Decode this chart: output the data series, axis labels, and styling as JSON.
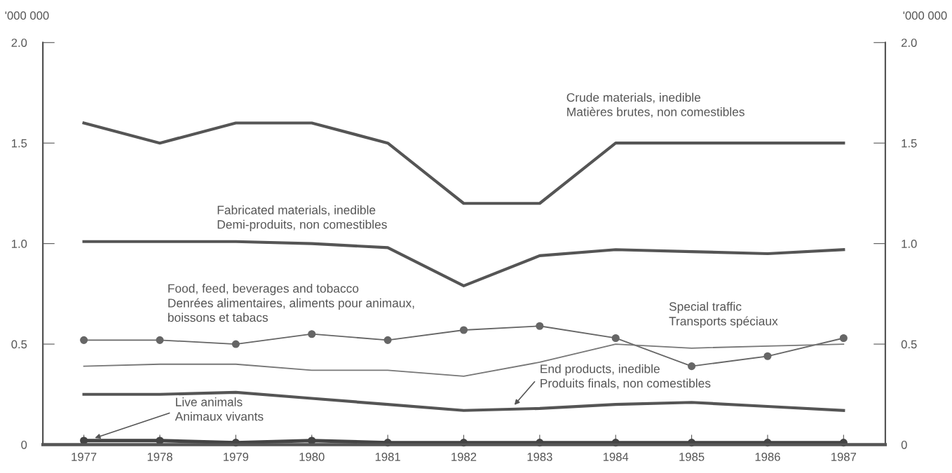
{
  "chart_data": {
    "type": "line",
    "ylabel": "'000 000",
    "y2label": "'000 000",
    "x": [
      1977,
      1978,
      1979,
      1980,
      1981,
      1982,
      1983,
      1984,
      1985,
      1986,
      1987
    ],
    "xlim": [
      1976.46,
      1987.55
    ],
    "xticks": [
      1977,
      1978,
      1979,
      1980,
      1981,
      1982,
      1983,
      1984,
      1985,
      1986,
      1987
    ],
    "ylim": [
      0,
      2.0
    ],
    "yticks": [
      0,
      {
        "value": 0.5,
        "label": "0.5"
      },
      {
        "value": 1.0,
        "label": "1.0"
      },
      {
        "value": 1.5,
        "label": "1.5"
      },
      {
        "value": 2.0,
        "label": "2.0"
      }
    ],
    "y2lim": [
      0,
      2.0
    ],
    "y2ticks": [
      0,
      {
        "value": 0.5,
        "label": "0.5"
      },
      {
        "value": 1.0,
        "label": "1.0"
      },
      {
        "value": 1.5,
        "label": "1.5"
      },
      {
        "value": 2.0,
        "label": "2.0"
      }
    ],
    "grid": false,
    "legend": false,
    "series": [
      {
        "name": "Crude materials, inedible\nMatières brutes, non comestibles",
        "color": "#555555",
        "marker": "none",
        "values": [
          1.6,
          1.5,
          1.6,
          1.6,
          1.5,
          1.2,
          1.2,
          1.5,
          1.5,
          1.5,
          1.5
        ]
      },
      {
        "name": "Fabricated materials, inedible\nDemi-produits, non comestibles",
        "color": "#555555",
        "marker": "none",
        "values": [
          1.01,
          1.01,
          1.01,
          1.0,
          0.98,
          0.79,
          0.94,
          0.97,
          0.96,
          0.95,
          0.97
        ]
      },
      {
        "name": "Food, feed, beverages and tobacco\nDenrées alimentaires, aliments pour animaux,\nboissons et tabacs",
        "color": "#666666",
        "marker": "circle",
        "values": [
          0.52,
          0.52,
          0.5,
          0.55,
          0.52,
          0.57,
          0.59,
          0.53,
          0.39,
          0.44,
          0.53
        ]
      },
      {
        "name": "Special traffic\nTransports spéciaux",
        "color": "#777777",
        "marker": "none",
        "values": [
          0.39,
          0.4,
          0.4,
          0.37,
          0.37,
          0.34,
          0.41,
          0.5,
          0.48,
          0.49,
          0.5
        ]
      },
      {
        "name": "End products, inedible\nProduits finals, non comestibles",
        "color": "#555555",
        "marker": "none",
        "values": [
          0.25,
          0.25,
          0.26,
          0.23,
          0.2,
          0.17,
          0.18,
          0.2,
          0.21,
          0.19,
          0.17
        ]
      },
      {
        "name": "Live animals\nAnimaux vivants",
        "color": "#444444",
        "marker": "circle",
        "values": [
          0.02,
          0.02,
          0.01,
          0.02,
          0.01,
          0.01,
          0.01,
          0.01,
          0.01,
          0.01,
          0.01
        ]
      }
    ]
  }
}
